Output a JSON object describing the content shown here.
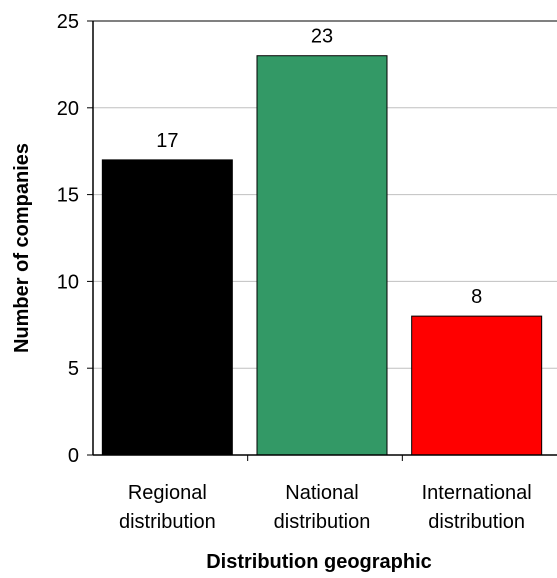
{
  "chart_data": {
    "type": "bar",
    "title": "",
    "xlabel": "Distribution geographic",
    "ylabel": "Number of companies",
    "categories": [
      [
        "Regional",
        "distribution"
      ],
      [
        "National",
        "distribution"
      ],
      [
        "International",
        "distribution"
      ]
    ],
    "values": [
      17,
      23,
      8
    ],
    "data_labels": [
      "17",
      "23",
      "8"
    ],
    "colors": [
      "#000000",
      "#339966",
      "#ff0000"
    ],
    "ylim": [
      0,
      25
    ],
    "yticks": [
      0,
      5,
      10,
      15,
      20,
      25
    ],
    "ytick_labels": [
      "0",
      "5",
      "10",
      "15",
      "20",
      "25"
    ],
    "grid": true,
    "gridline_color": "#c0c0c0",
    "legend": "none"
  }
}
